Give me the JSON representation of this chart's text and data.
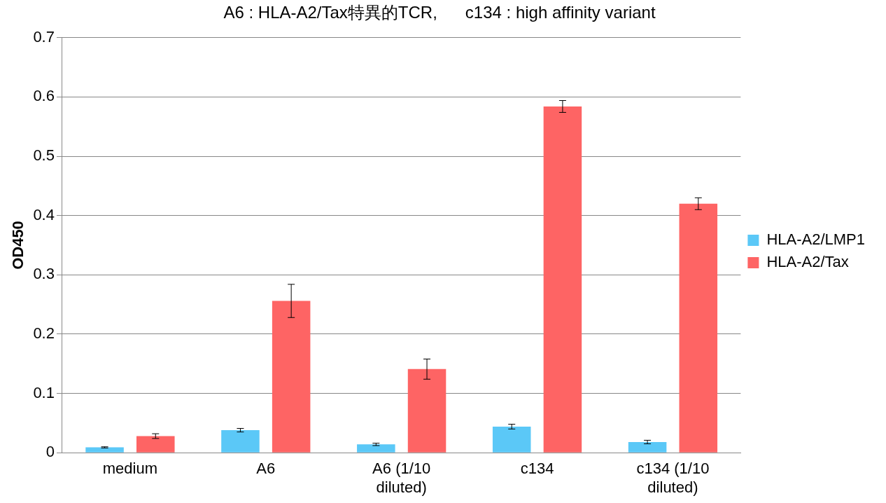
{
  "chart_data": {
    "type": "bar",
    "title": "A6 : HLA-A2/Tax特異的TCR,      c134 : high affinity variant",
    "ylabel": "OD450",
    "categories": [
      "medium",
      "A6",
      "A6 (1/10 diluted)",
      "c134",
      "c134 (1/10 diluted)"
    ],
    "series": [
      {
        "name": "HLA-A2/LMP1",
        "color": "#5bc8f7",
        "values": [
          0.009,
          0.038,
          0.014,
          0.044,
          0.018
        ],
        "errors": [
          0.001,
          0.003,
          0.002,
          0.004,
          0.003
        ]
      },
      {
        "name": "HLA-A2/Tax",
        "color": "#fe6464",
        "values": [
          0.028,
          0.256,
          0.141,
          0.584,
          0.42
        ],
        "errors": [
          0.004,
          0.028,
          0.017,
          0.01,
          0.01
        ]
      }
    ],
    "ylim": [
      0,
      0.7
    ],
    "yticks": [
      0,
      0.1,
      0.2,
      0.3,
      0.4,
      0.5,
      0.6,
      0.7
    ],
    "grid": "y",
    "legend": "right"
  }
}
